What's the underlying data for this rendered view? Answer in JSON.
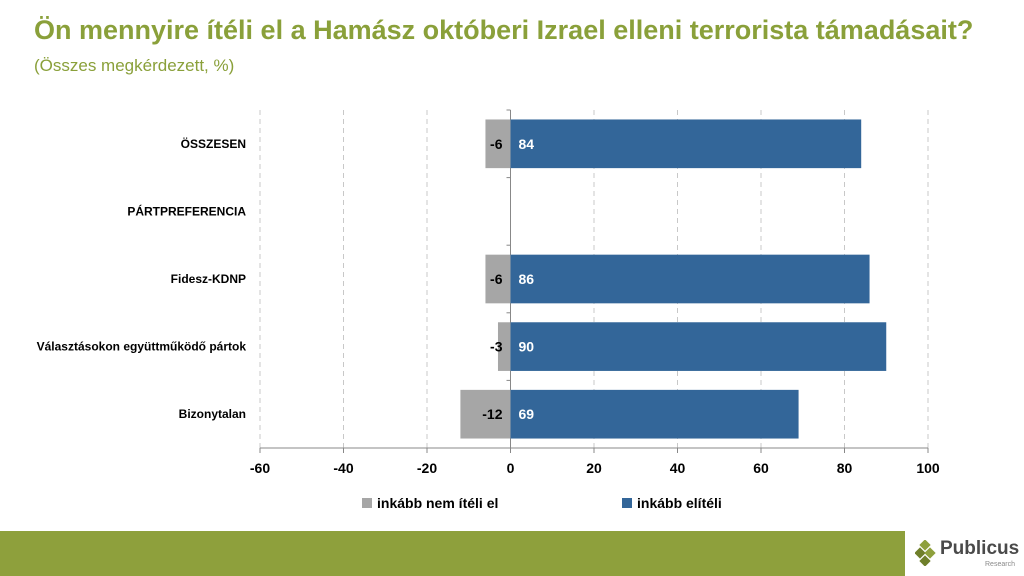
{
  "title": {
    "main": "Ön mennyire ítéli el a Hamász októberi Izrael elleni terrorista támadásait?",
    "sub": "(Összes megkérdezett, %)"
  },
  "chart_data": {
    "type": "bar",
    "orientation": "horizontal",
    "stacked": true,
    "categories": [
      "ÖSSZESEN",
      "PÁRTPREFERENCIA",
      "Fidesz-KDNP",
      "Választásokon együttműködő pártok",
      "Bizonytalan"
    ],
    "series": [
      {
        "name": "inkább nem ítéli el",
        "color": "#a6a6a6",
        "values": [
          -6,
          null,
          -6,
          -3,
          -12
        ],
        "labels": [
          "-6",
          "",
          "-6",
          "-3",
          "-12"
        ]
      },
      {
        "name": "inkább elítéli",
        "color": "#336699",
        "values": [
          84,
          null,
          86,
          90,
          69
        ],
        "labels": [
          "84",
          "",
          "86",
          "90",
          "69"
        ]
      }
    ],
    "xlim": [
      -60,
      100
    ],
    "xticks": [
      -60,
      -40,
      -20,
      0,
      20,
      40,
      60,
      80,
      100
    ],
    "xtick_labels": [
      "-60",
      "-40",
      "-20",
      "0",
      "20",
      "40",
      "60",
      "80",
      "100"
    ],
    "grid": "vertical dashed",
    "legend": "bottom"
  },
  "footer": {
    "logo_name": "Publicus",
    "logo_tagline": "Research"
  },
  "colors": {
    "accent": "#8aa03a",
    "footer": "#8ea03c",
    "negative": "#a6a6a6",
    "positive": "#336699"
  }
}
